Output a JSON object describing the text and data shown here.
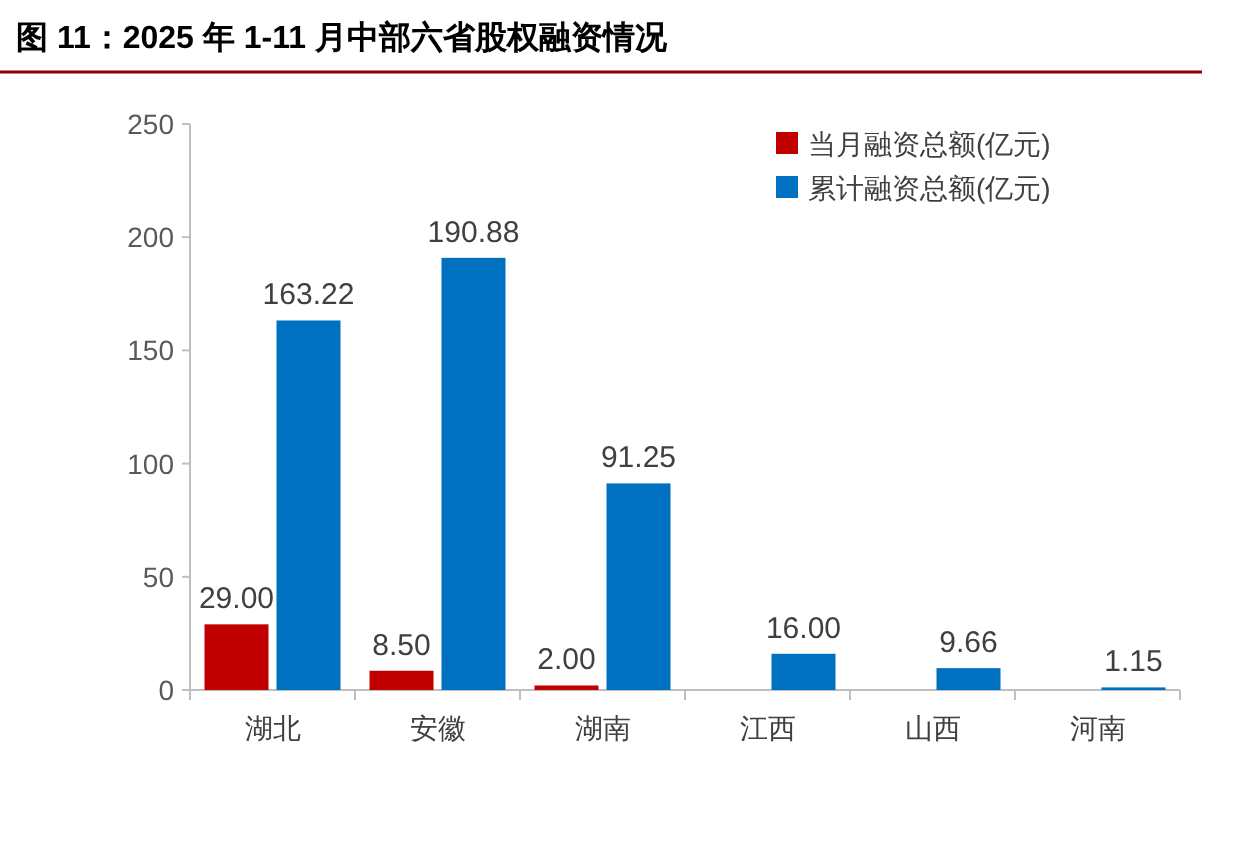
{
  "chart_data": {
    "type": "bar",
    "title": "图 11：2025 年 1-11 月中部六省股权融资情况",
    "categories": [
      "湖北",
      "安徽",
      "湖南",
      "江西",
      "山西",
      "河南"
    ],
    "series": [
      {
        "name": "当月融资总额(亿元)",
        "color": "#c00000",
        "values": [
          29.0,
          8.5,
          2.0,
          null,
          null,
          null
        ],
        "value_labels": [
          "29.00",
          "8.50",
          "2.00",
          null,
          null,
          null
        ]
      },
      {
        "name": "累计融资总额(亿元)",
        "color": "#0070c0",
        "values": [
          163.22,
          190.88,
          91.25,
          16.0,
          9.66,
          1.15
        ],
        "value_labels": [
          "163.22",
          "190.88",
          "91.25",
          "16.00",
          "9.66",
          "1.15"
        ]
      }
    ],
    "ylim": [
      0,
      250
    ],
    "yticks": [
      0,
      50,
      100,
      150,
      200,
      250
    ],
    "legend": "top right"
  }
}
